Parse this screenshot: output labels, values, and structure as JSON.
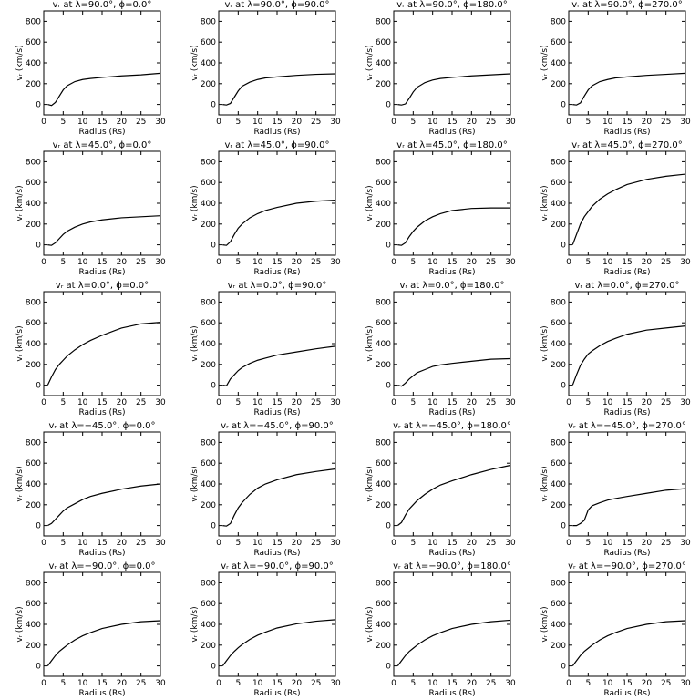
{
  "chart_data": [
    {
      "type": "line",
      "title": "vᵣ at λ=90.0°, ϕ=0.0°",
      "x_label": "Radius (Rs)",
      "y_label": "vᵣ (km/s)",
      "x": [
        1,
        2,
        3,
        4,
        5,
        6,
        8,
        10,
        12,
        15,
        20,
        25,
        30
      ],
      "values": [
        0,
        -10,
        20,
        80,
        140,
        180,
        220,
        240,
        250,
        260,
        275,
        285,
        300
      ],
      "color": "#000000",
      "xlim": [
        0,
        30
      ],
      "ylim": [
        -100,
        900
      ],
      "xticks": [
        0,
        5,
        10,
        15,
        20,
        25,
        30
      ],
      "yticks": [
        0,
        200,
        400,
        600,
        800
      ]
    },
    {
      "type": "line",
      "title": "vᵣ at λ=90.0°, ϕ=90.0°",
      "x_label": "Radius (Rs)",
      "y_label": "vᵣ (km/s)",
      "x": [
        1,
        2,
        3,
        4,
        5,
        6,
        8,
        10,
        12,
        15,
        20,
        25,
        30
      ],
      "values": [
        0,
        -5,
        10,
        70,
        130,
        175,
        215,
        240,
        255,
        265,
        280,
        290,
        295
      ],
      "color": "#000000",
      "xlim": [
        0,
        30
      ],
      "ylim": [
        -100,
        900
      ],
      "xticks": [
        0,
        5,
        10,
        15,
        20,
        25,
        30
      ],
      "yticks": [
        0,
        200,
        400,
        600,
        800
      ]
    },
    {
      "type": "line",
      "title": "vᵣ at λ=90.0°, ϕ=180.0°",
      "x_label": "Radius (Rs)",
      "y_label": "vᵣ (km/s)",
      "x": [
        1,
        2,
        3,
        4,
        5,
        6,
        8,
        10,
        12,
        15,
        20,
        25,
        30
      ],
      "values": [
        0,
        -5,
        5,
        60,
        120,
        165,
        210,
        235,
        250,
        260,
        275,
        285,
        295
      ],
      "color": "#000000",
      "xlim": [
        0,
        30
      ],
      "ylim": [
        -100,
        900
      ],
      "xticks": [
        0,
        5,
        10,
        15,
        20,
        25,
        30
      ],
      "yticks": [
        0,
        200,
        400,
        600,
        800
      ]
    },
    {
      "type": "line",
      "title": "vᵣ at λ=90.0°, ϕ=270.0°",
      "x_label": "Radius (Rs)",
      "y_label": "vᵣ (km/s)",
      "x": [
        1,
        2,
        3,
        4,
        5,
        6,
        8,
        10,
        12,
        15,
        20,
        25,
        30
      ],
      "values": [
        0,
        -5,
        15,
        80,
        140,
        180,
        220,
        240,
        255,
        265,
        280,
        290,
        300
      ],
      "color": "#000000",
      "xlim": [
        0,
        30
      ],
      "ylim": [
        -100,
        900
      ],
      "xticks": [
        0,
        5,
        10,
        15,
        20,
        25,
        30
      ],
      "yticks": [
        0,
        200,
        400,
        600,
        800
      ]
    },
    {
      "type": "line",
      "title": "vᵣ at λ=45.0°, ϕ=0.0°",
      "x_label": "Radius (Rs)",
      "y_label": "vᵣ (km/s)",
      "x": [
        1,
        2,
        3,
        4,
        5,
        6,
        8,
        10,
        12,
        15,
        20,
        25,
        30
      ],
      "values": [
        0,
        -5,
        20,
        60,
        100,
        130,
        170,
        200,
        220,
        240,
        260,
        270,
        280
      ],
      "color": "#000000",
      "xlim": [
        0,
        30
      ],
      "ylim": [
        -100,
        900
      ],
      "xticks": [
        0,
        5,
        10,
        15,
        20,
        25,
        30
      ],
      "yticks": [
        0,
        200,
        400,
        600,
        800
      ]
    },
    {
      "type": "line",
      "title": "vᵣ at λ=45.0°, ϕ=90.0°",
      "x_label": "Radius (Rs)",
      "y_label": "vᵣ (km/s)",
      "x": [
        1,
        2,
        3,
        4,
        5,
        6,
        8,
        10,
        12,
        15,
        20,
        25,
        30
      ],
      "values": [
        0,
        -5,
        30,
        100,
        160,
        200,
        260,
        300,
        330,
        360,
        400,
        420,
        430
      ],
      "color": "#000000",
      "xlim": [
        0,
        30
      ],
      "ylim": [
        -100,
        900
      ],
      "xticks": [
        0,
        5,
        10,
        15,
        20,
        25,
        30
      ],
      "yticks": [
        0,
        200,
        400,
        600,
        800
      ]
    },
    {
      "type": "line",
      "title": "vᵣ at λ=45.0°, ϕ=180.0°",
      "x_label": "Radius (Rs)",
      "y_label": "vᵣ (km/s)",
      "x": [
        1,
        2,
        3,
        4,
        5,
        6,
        8,
        10,
        12,
        15,
        20,
        25,
        30
      ],
      "values": [
        0,
        -5,
        20,
        80,
        130,
        170,
        230,
        270,
        300,
        330,
        350,
        355,
        355
      ],
      "color": "#000000",
      "xlim": [
        0,
        30
      ],
      "ylim": [
        -100,
        900
      ],
      "xticks": [
        0,
        5,
        10,
        15,
        20,
        25,
        30
      ],
      "yticks": [
        0,
        200,
        400,
        600,
        800
      ]
    },
    {
      "type": "line",
      "title": "vᵣ at λ=45.0°, ϕ=270.0°",
      "x_label": "Radius (Rs)",
      "y_label": "vᵣ (km/s)",
      "x": [
        1,
        2,
        3,
        4,
        5,
        6,
        8,
        10,
        12,
        15,
        20,
        25,
        30
      ],
      "values": [
        0,
        100,
        200,
        270,
        320,
        370,
        440,
        490,
        530,
        580,
        630,
        660,
        680
      ],
      "color": "#000000",
      "xlim": [
        0,
        30
      ],
      "ylim": [
        -100,
        900
      ],
      "xticks": [
        0,
        5,
        10,
        15,
        20,
        25,
        30
      ],
      "yticks": [
        0,
        200,
        400,
        600,
        800
      ]
    },
    {
      "type": "line",
      "title": "vᵣ at λ=0.0°, ϕ=0.0°",
      "x_label": "Radius (Rs)",
      "y_label": "vᵣ (km/s)",
      "x": [
        1,
        2,
        3,
        4,
        5,
        6,
        8,
        10,
        12,
        15,
        20,
        25,
        30
      ],
      "values": [
        0,
        80,
        150,
        200,
        240,
        280,
        340,
        390,
        430,
        480,
        550,
        590,
        605
      ],
      "color": "#000000",
      "xlim": [
        0,
        30
      ],
      "ylim": [
        -100,
        900
      ],
      "xticks": [
        0,
        5,
        10,
        15,
        20,
        25,
        30
      ],
      "yticks": [
        0,
        200,
        400,
        600,
        800
      ]
    },
    {
      "type": "line",
      "title": "vᵣ at λ=0.0°, ϕ=90.0°",
      "x_label": "Radius (Rs)",
      "y_label": "vᵣ (km/s)",
      "x": [
        1,
        2,
        3,
        4,
        5,
        6,
        8,
        10,
        12,
        15,
        20,
        25,
        30
      ],
      "values": [
        0,
        -5,
        60,
        100,
        140,
        170,
        210,
        240,
        260,
        290,
        320,
        350,
        375
      ],
      "color": "#000000",
      "xlim": [
        0,
        30
      ],
      "ylim": [
        -100,
        900
      ],
      "xticks": [
        0,
        5,
        10,
        15,
        20,
        25,
        30
      ],
      "yticks": [
        0,
        200,
        400,
        600,
        800
      ]
    },
    {
      "type": "line",
      "title": "vᵣ at λ=0.0°, ϕ=180.0°",
      "x_label": "Radius (Rs)",
      "y_label": "vᵣ (km/s)",
      "x": [
        1,
        2,
        3,
        4,
        5,
        6,
        8,
        10,
        12,
        15,
        20,
        25,
        30
      ],
      "values": [
        0,
        -10,
        20,
        60,
        90,
        120,
        150,
        180,
        195,
        210,
        230,
        250,
        255
      ],
      "color": "#000000",
      "xlim": [
        0,
        30
      ],
      "ylim": [
        -100,
        900
      ],
      "xticks": [
        0,
        5,
        10,
        15,
        20,
        25,
        30
      ],
      "yticks": [
        0,
        200,
        400,
        600,
        800
      ]
    },
    {
      "type": "line",
      "title": "vᵣ at λ=0.0°, ϕ=270.0°",
      "x_label": "Radius (Rs)",
      "y_label": "vᵣ (km/s)",
      "x": [
        1,
        2,
        3,
        4,
        5,
        6,
        8,
        10,
        12,
        15,
        20,
        25,
        30
      ],
      "values": [
        0,
        100,
        190,
        250,
        300,
        330,
        380,
        420,
        450,
        490,
        530,
        550,
        570
      ],
      "color": "#000000",
      "xlim": [
        0,
        30
      ],
      "ylim": [
        -100,
        900
      ],
      "xticks": [
        0,
        5,
        10,
        15,
        20,
        25,
        30
      ],
      "yticks": [
        0,
        200,
        400,
        600,
        800
      ]
    },
    {
      "type": "line",
      "title": "vᵣ at λ=−45.0°, ϕ=0.0°",
      "x_label": "Radius (Rs)",
      "y_label": "vᵣ (km/s)",
      "x": [
        1,
        2,
        3,
        4,
        5,
        6,
        8,
        10,
        12,
        15,
        20,
        25,
        30
      ],
      "values": [
        0,
        20,
        60,
        100,
        140,
        170,
        210,
        250,
        280,
        310,
        350,
        380,
        400
      ],
      "color": "#000000",
      "xlim": [
        0,
        30
      ],
      "ylim": [
        -100,
        900
      ],
      "xticks": [
        0,
        5,
        10,
        15,
        20,
        25,
        30
      ],
      "yticks": [
        0,
        200,
        400,
        600,
        800
      ]
    },
    {
      "type": "line",
      "title": "vᵣ at λ=−45.0°, ϕ=90.0°",
      "x_label": "Radius (Rs)",
      "y_label": "vᵣ (km/s)",
      "x": [
        1,
        2,
        3,
        4,
        5,
        6,
        8,
        10,
        12,
        15,
        20,
        25,
        30
      ],
      "values": [
        0,
        -5,
        20,
        100,
        170,
        220,
        300,
        360,
        400,
        440,
        490,
        520,
        545
      ],
      "color": "#000000",
      "xlim": [
        0,
        30
      ],
      "ylim": [
        -100,
        900
      ],
      "xticks": [
        0,
        5,
        10,
        15,
        20,
        25,
        30
      ],
      "yticks": [
        0,
        200,
        400,
        600,
        800
      ]
    },
    {
      "type": "line",
      "title": "vᵣ at λ=−45.0°, ϕ=180.0°",
      "x_label": "Radius (Rs)",
      "y_label": "vᵣ (km/s)",
      "x": [
        1,
        2,
        3,
        4,
        5,
        6,
        8,
        10,
        12,
        15,
        20,
        25,
        30
      ],
      "values": [
        0,
        30,
        100,
        160,
        200,
        240,
        300,
        350,
        390,
        430,
        490,
        540,
        580
      ],
      "color": "#000000",
      "xlim": [
        0,
        30
      ],
      "ylim": [
        -100,
        900
      ],
      "xticks": [
        0,
        5,
        10,
        15,
        20,
        25,
        30
      ],
      "yticks": [
        0,
        200,
        400,
        600,
        800
      ]
    },
    {
      "type": "line",
      "title": "vᵣ at λ=−45.0°, ϕ=270.0°",
      "x_label": "Radius (Rs)",
      "y_label": "vᵣ (km/s)",
      "x": [
        1,
        2,
        3,
        4,
        5,
        6,
        8,
        10,
        12,
        15,
        20,
        25,
        30
      ],
      "values": [
        0,
        0,
        20,
        50,
        150,
        190,
        220,
        245,
        260,
        280,
        310,
        340,
        355
      ],
      "color": "#000000",
      "xlim": [
        0,
        30
      ],
      "ylim": [
        -100,
        900
      ],
      "xticks": [
        0,
        5,
        10,
        15,
        20,
        25,
        30
      ],
      "yticks": [
        0,
        200,
        400,
        600,
        800
      ]
    },
    {
      "type": "line",
      "title": "vᵣ at λ=−90.0°, ϕ=0.0°",
      "x_label": "Radius (Rs)",
      "y_label": "vᵣ (km/s)",
      "x": [
        1,
        2,
        3,
        4,
        5,
        6,
        8,
        10,
        12,
        15,
        20,
        25,
        30
      ],
      "values": [
        0,
        50,
        100,
        140,
        170,
        200,
        250,
        290,
        320,
        360,
        400,
        425,
        435
      ],
      "color": "#000000",
      "xlim": [
        0,
        30
      ],
      "ylim": [
        -100,
        900
      ],
      "xticks": [
        0,
        5,
        10,
        15,
        20,
        25,
        30
      ],
      "yticks": [
        0,
        200,
        400,
        600,
        800
      ]
    },
    {
      "type": "line",
      "title": "vᵣ at λ=−90.0°, ϕ=90.0°",
      "x_label": "Radius (Rs)",
      "y_label": "vᵣ (km/s)",
      "x": [
        1,
        2,
        3,
        4,
        5,
        6,
        8,
        10,
        12,
        15,
        20,
        25,
        30
      ],
      "values": [
        0,
        50,
        100,
        140,
        175,
        205,
        255,
        295,
        325,
        365,
        405,
        430,
        445
      ],
      "color": "#000000",
      "xlim": [
        0,
        30
      ],
      "ylim": [
        -100,
        900
      ],
      "xticks": [
        0,
        5,
        10,
        15,
        20,
        25,
        30
      ],
      "yticks": [
        0,
        200,
        400,
        600,
        800
      ]
    },
    {
      "type": "line",
      "title": "vᵣ at λ=−90.0°, ϕ=180.0°",
      "x_label": "Radius (Rs)",
      "y_label": "vᵣ (km/s)",
      "x": [
        1,
        2,
        3,
        4,
        5,
        6,
        8,
        10,
        12,
        15,
        20,
        25,
        30
      ],
      "values": [
        0,
        50,
        100,
        140,
        170,
        200,
        250,
        290,
        320,
        360,
        400,
        425,
        440
      ],
      "color": "#000000",
      "xlim": [
        0,
        30
      ],
      "ylim": [
        -100,
        900
      ],
      "xticks": [
        0,
        5,
        10,
        15,
        20,
        25,
        30
      ],
      "yticks": [
        0,
        200,
        400,
        600,
        800
      ]
    },
    {
      "type": "line",
      "title": "vᵣ at λ=−90.0°, ϕ=270.0°",
      "x_label": "Radius (Rs)",
      "y_label": "vᵣ (km/s)",
      "x": [
        1,
        2,
        3,
        4,
        5,
        6,
        8,
        10,
        12,
        15,
        20,
        25,
        30
      ],
      "values": [
        0,
        50,
        100,
        140,
        170,
        200,
        250,
        290,
        320,
        360,
        400,
        425,
        435
      ],
      "color": "#000000",
      "xlim": [
        0,
        30
      ],
      "ylim": [
        -100,
        900
      ],
      "xticks": [
        0,
        5,
        10,
        15,
        20,
        25,
        30
      ],
      "yticks": [
        0,
        200,
        400,
        600,
        800
      ]
    }
  ]
}
